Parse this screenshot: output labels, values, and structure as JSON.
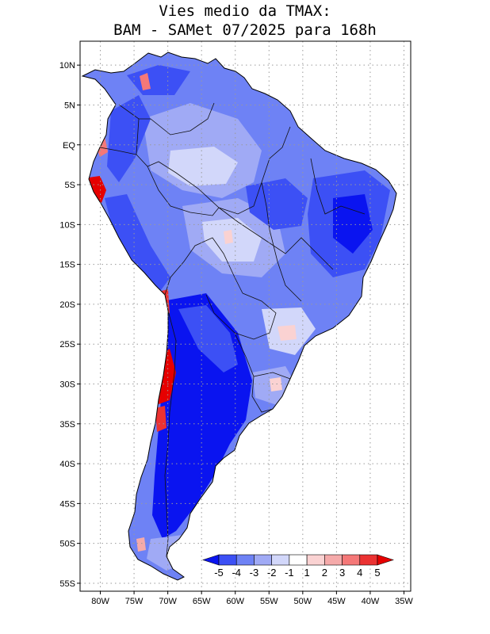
{
  "title": {
    "line1": "Vies medio da TMAX:",
    "line2": "BAM - SAMet 07/2025  para 168h"
  },
  "map": {
    "region": "South America",
    "lon_range": [
      -83,
      -34
    ],
    "lat_range": [
      -56,
      13
    ],
    "lon_ticks": [
      "80W",
      "75W",
      "70W",
      "65W",
      "60W",
      "55W",
      "50W",
      "45W",
      "40W",
      "35W"
    ],
    "lon_values": [
      -80,
      -75,
      -70,
      -65,
      -60,
      -55,
      -50,
      -45,
      -40,
      -35
    ],
    "lat_ticks": [
      "10N",
      "5N",
      "EQ",
      "5S",
      "10S",
      "15S",
      "20S",
      "25S",
      "30S",
      "35S",
      "40S",
      "45S",
      "50S",
      "55S"
    ],
    "lat_values": [
      10,
      5,
      0,
      -5,
      -10,
      -15,
      -20,
      -25,
      -30,
      -35,
      -40,
      -45,
      -50,
      -55
    ]
  },
  "colorbar": {
    "labels": [
      "-5",
      "-4",
      "-3",
      "-2",
      "-1",
      "1",
      "2",
      "3",
      "4",
      "5"
    ],
    "colors": [
      "#0a14f0",
      "#3c50f5",
      "#6e82f5",
      "#a0aaf5",
      "#d2d7fa",
      "#ffffff",
      "#fad2d2",
      "#f5aaaa",
      "#f57878",
      "#eb3232",
      "#e60000"
    ]
  }
}
